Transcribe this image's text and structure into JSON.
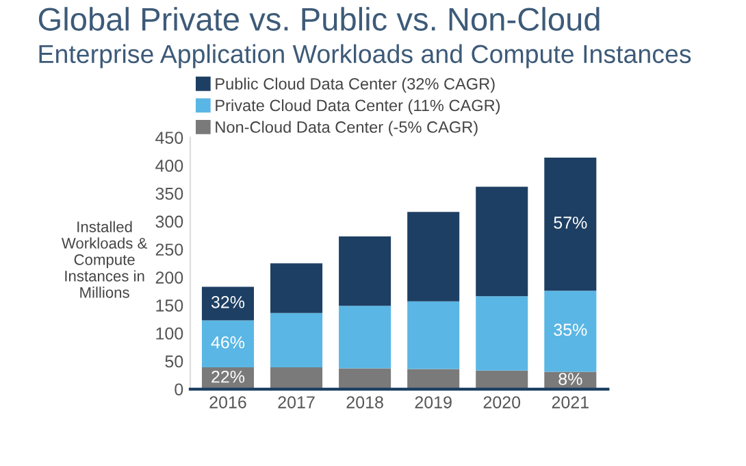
{
  "chart_data": {
    "type": "bar",
    "title": "Global Private vs. Public vs. Non-Cloud",
    "subtitle": "Enterprise Application Workloads and Compute Instances",
    "ylabel": "Installed\nWorkloads &\nCompute\nInstances in\nMillions",
    "categories": [
      "2016",
      "2017",
      "2018",
      "2019",
      "2020",
      "2021"
    ],
    "stacked": true,
    "series": [
      {
        "name": "Non-Cloud Data Center (-5% CAGR)",
        "color": "#7a7a7a",
        "values": [
          39,
          39,
          37,
          36,
          33,
          31
        ]
      },
      {
        "name": "Private Cloud Data Center (11% CAGR)",
        "color": "#5ab6e4",
        "values": [
          84,
          97,
          112,
          121,
          133,
          145
        ]
      },
      {
        "name": "Public Cloud Data Center (32% CAGR)",
        "color": "#1d3f63",
        "values": [
          60,
          89,
          124,
          160,
          196,
          238
        ]
      }
    ],
    "annotations": [
      "22%",
      "46%",
      "32%",
      "8%",
      "35%",
      "57%"
    ],
    "ylim": [
      0,
      450
    ],
    "yticks": [
      0,
      50,
      100,
      150,
      200,
      250,
      300,
      350,
      400,
      450
    ],
    "grid": false,
    "legend": "top left"
  }
}
